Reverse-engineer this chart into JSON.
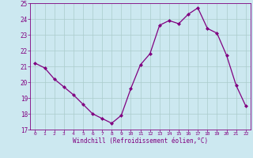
{
  "x": [
    0,
    1,
    2,
    3,
    4,
    5,
    6,
    7,
    8,
    9,
    10,
    11,
    12,
    13,
    14,
    15,
    16,
    17,
    18,
    19,
    20,
    21,
    22
  ],
  "y": [
    21.2,
    20.9,
    20.2,
    19.7,
    19.2,
    18.6,
    18.0,
    17.7,
    17.4,
    17.9,
    19.6,
    21.1,
    21.8,
    23.6,
    23.9,
    23.7,
    24.3,
    24.7,
    23.4,
    23.1,
    21.7,
    19.8,
    18.5
  ],
  "line_color": "#800080",
  "marker": "D",
  "marker_size": 2.0,
  "linewidth": 0.9,
  "bg_color": "#cce8f0",
  "grid_color": "#aacccc",
  "xlabel": "Windchill (Refroidissement éolien,°C)",
  "xlim": [
    -0.5,
    22.5
  ],
  "ylim": [
    17,
    25
  ],
  "yticks": [
    17,
    18,
    19,
    20,
    21,
    22,
    23,
    24,
    25
  ],
  "xticks": [
    0,
    1,
    2,
    3,
    4,
    5,
    6,
    7,
    8,
    9,
    10,
    11,
    12,
    13,
    14,
    15,
    16,
    17,
    18,
    19,
    20,
    21,
    22
  ]
}
